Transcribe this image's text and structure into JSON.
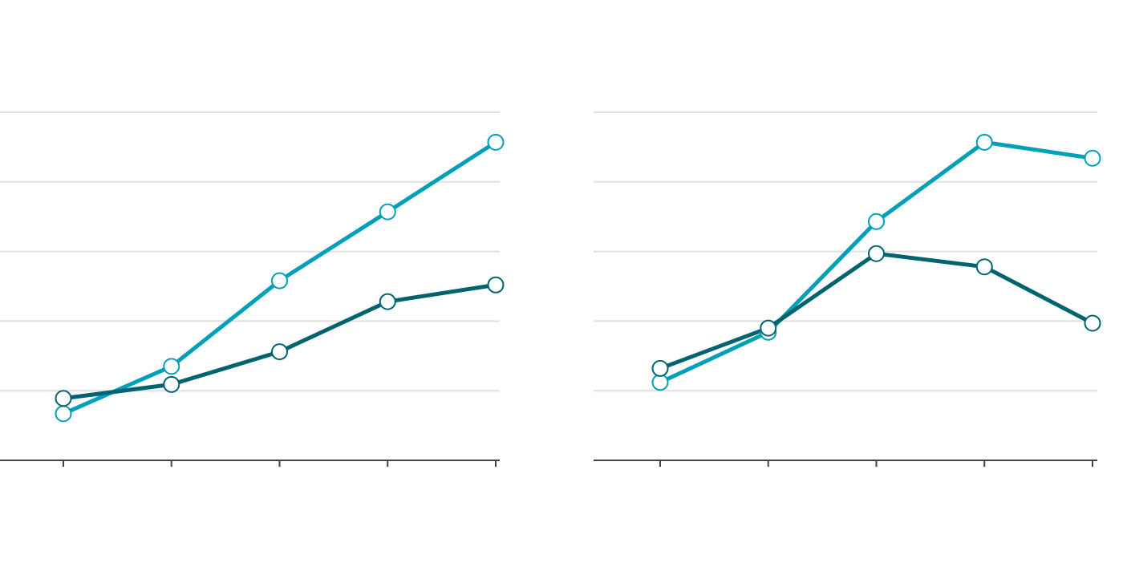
{
  "chart_data": [
    {
      "type": "line",
      "categories": [
        null,
        null,
        null,
        null,
        null
      ],
      "ylim": [
        0,
        5
      ],
      "yticks": [
        1,
        2,
        3,
        4,
        5
      ],
      "grid": true,
      "series": [
        {
          "color": "#00a0b8",
          "values": [
            0.67,
            1.35,
            2.58,
            3.57,
            4.57
          ]
        },
        {
          "color": "#006470",
          "values": [
            0.89,
            1.09,
            1.56,
            2.28,
            2.52
          ]
        }
      ]
    },
    {
      "type": "line",
      "categories": [
        null,
        null,
        null,
        null,
        null
      ],
      "ylim": [
        0,
        5
      ],
      "yticks": [
        1,
        2,
        3,
        4,
        5
      ],
      "grid": true,
      "series": [
        {
          "color": "#00a0b8",
          "values": [
            1.12,
            1.84,
            3.43,
            4.57,
            4.34
          ]
        },
        {
          "color": "#006470",
          "values": [
            1.32,
            1.9,
            2.97,
            2.78,
            1.97
          ]
        }
      ]
    }
  ]
}
